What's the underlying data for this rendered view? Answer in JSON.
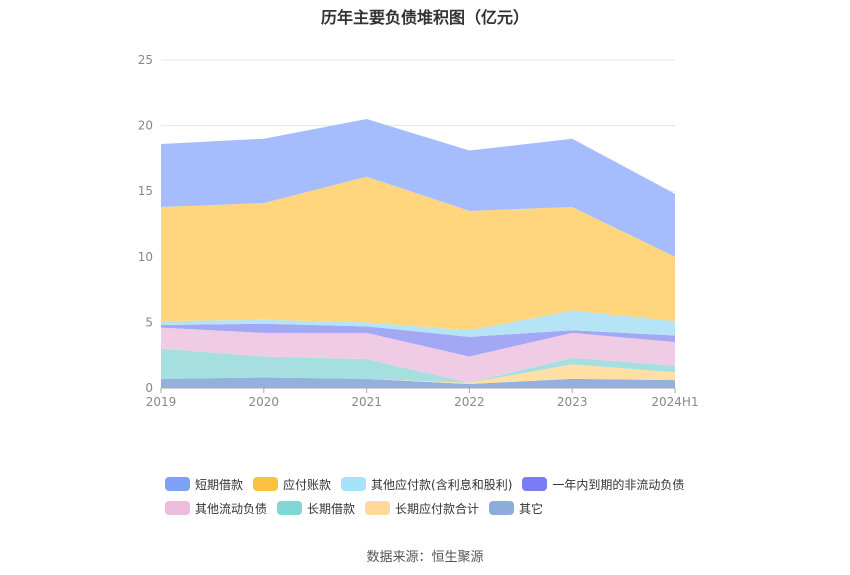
{
  "chart_data": {
    "type": "area",
    "stacked": true,
    "title": "历年主要负债堆积图（亿元）",
    "categories": [
      "2019",
      "2020",
      "2021",
      "2022",
      "2023",
      "2024H1"
    ],
    "ylim": [
      0,
      25
    ],
    "yticks": [
      0,
      5,
      10,
      15,
      20,
      25
    ],
    "grid": true,
    "legend_position": "bottom",
    "series": [
      {
        "name": "其它",
        "color": "#94b0dc",
        "values": [
          0.7,
          0.8,
          0.7,
          0.3,
          0.7,
          0.6
        ]
      },
      {
        "name": "长期应付款合计",
        "color": "#ffdfa6",
        "values": [
          0,
          0,
          0,
          0.1,
          1.1,
          0.6
        ]
      },
      {
        "name": "长期借款",
        "color": "#a6dfe0",
        "values": [
          2.3,
          1.6,
          1.5,
          0,
          0.5,
          0.5
        ]
      },
      {
        "name": "其他流动负债",
        "color": "#f0cce4",
        "values": [
          1.6,
          1.8,
          2.0,
          2.0,
          1.9,
          1.8
        ]
      },
      {
        "name": "一年内到期的非流动负债",
        "color": "#a3a8f5",
        "values": [
          0.2,
          0.7,
          0.5,
          1.5,
          0.2,
          0.5
        ]
      },
      {
        "name": "其他应付款(含利息和股利)",
        "color": "#b6e4f7",
        "values": [
          0.3,
          0.3,
          0.3,
          0.5,
          1.5,
          1.1
        ]
      },
      {
        "name": "应付账款",
        "color": "#ffd67e",
        "values": [
          8.7,
          8.9,
          11.1,
          9.1,
          7.9,
          4.9
        ]
      },
      {
        "name": "短期借款",
        "color": "#a5bdfc",
        "values": [
          4.8,
          4.9,
          4.4,
          4.6,
          5.2,
          4.8
        ]
      }
    ]
  },
  "legend": [
    [
      {
        "label": "短期借款",
        "color": "#7ea0f5"
      },
      {
        "label": "应付账款",
        "color": "#fcc13e"
      },
      {
        "label": "其他应付款(含利息和股利)",
        "color": "#a6e3fb"
      },
      {
        "label": "一年内到期的非流动负债",
        "color": "#7a7cf6"
      }
    ],
    [
      {
        "label": "其他流动负债",
        "color": "#ecbcdc"
      },
      {
        "label": "长期借款",
        "color": "#7fd8d6"
      },
      {
        "label": "长期应付款合计",
        "color": "#ffd99a"
      },
      {
        "label": "其它",
        "color": "#8eacdb"
      }
    ]
  ],
  "source": "数据来源：恒生聚源"
}
